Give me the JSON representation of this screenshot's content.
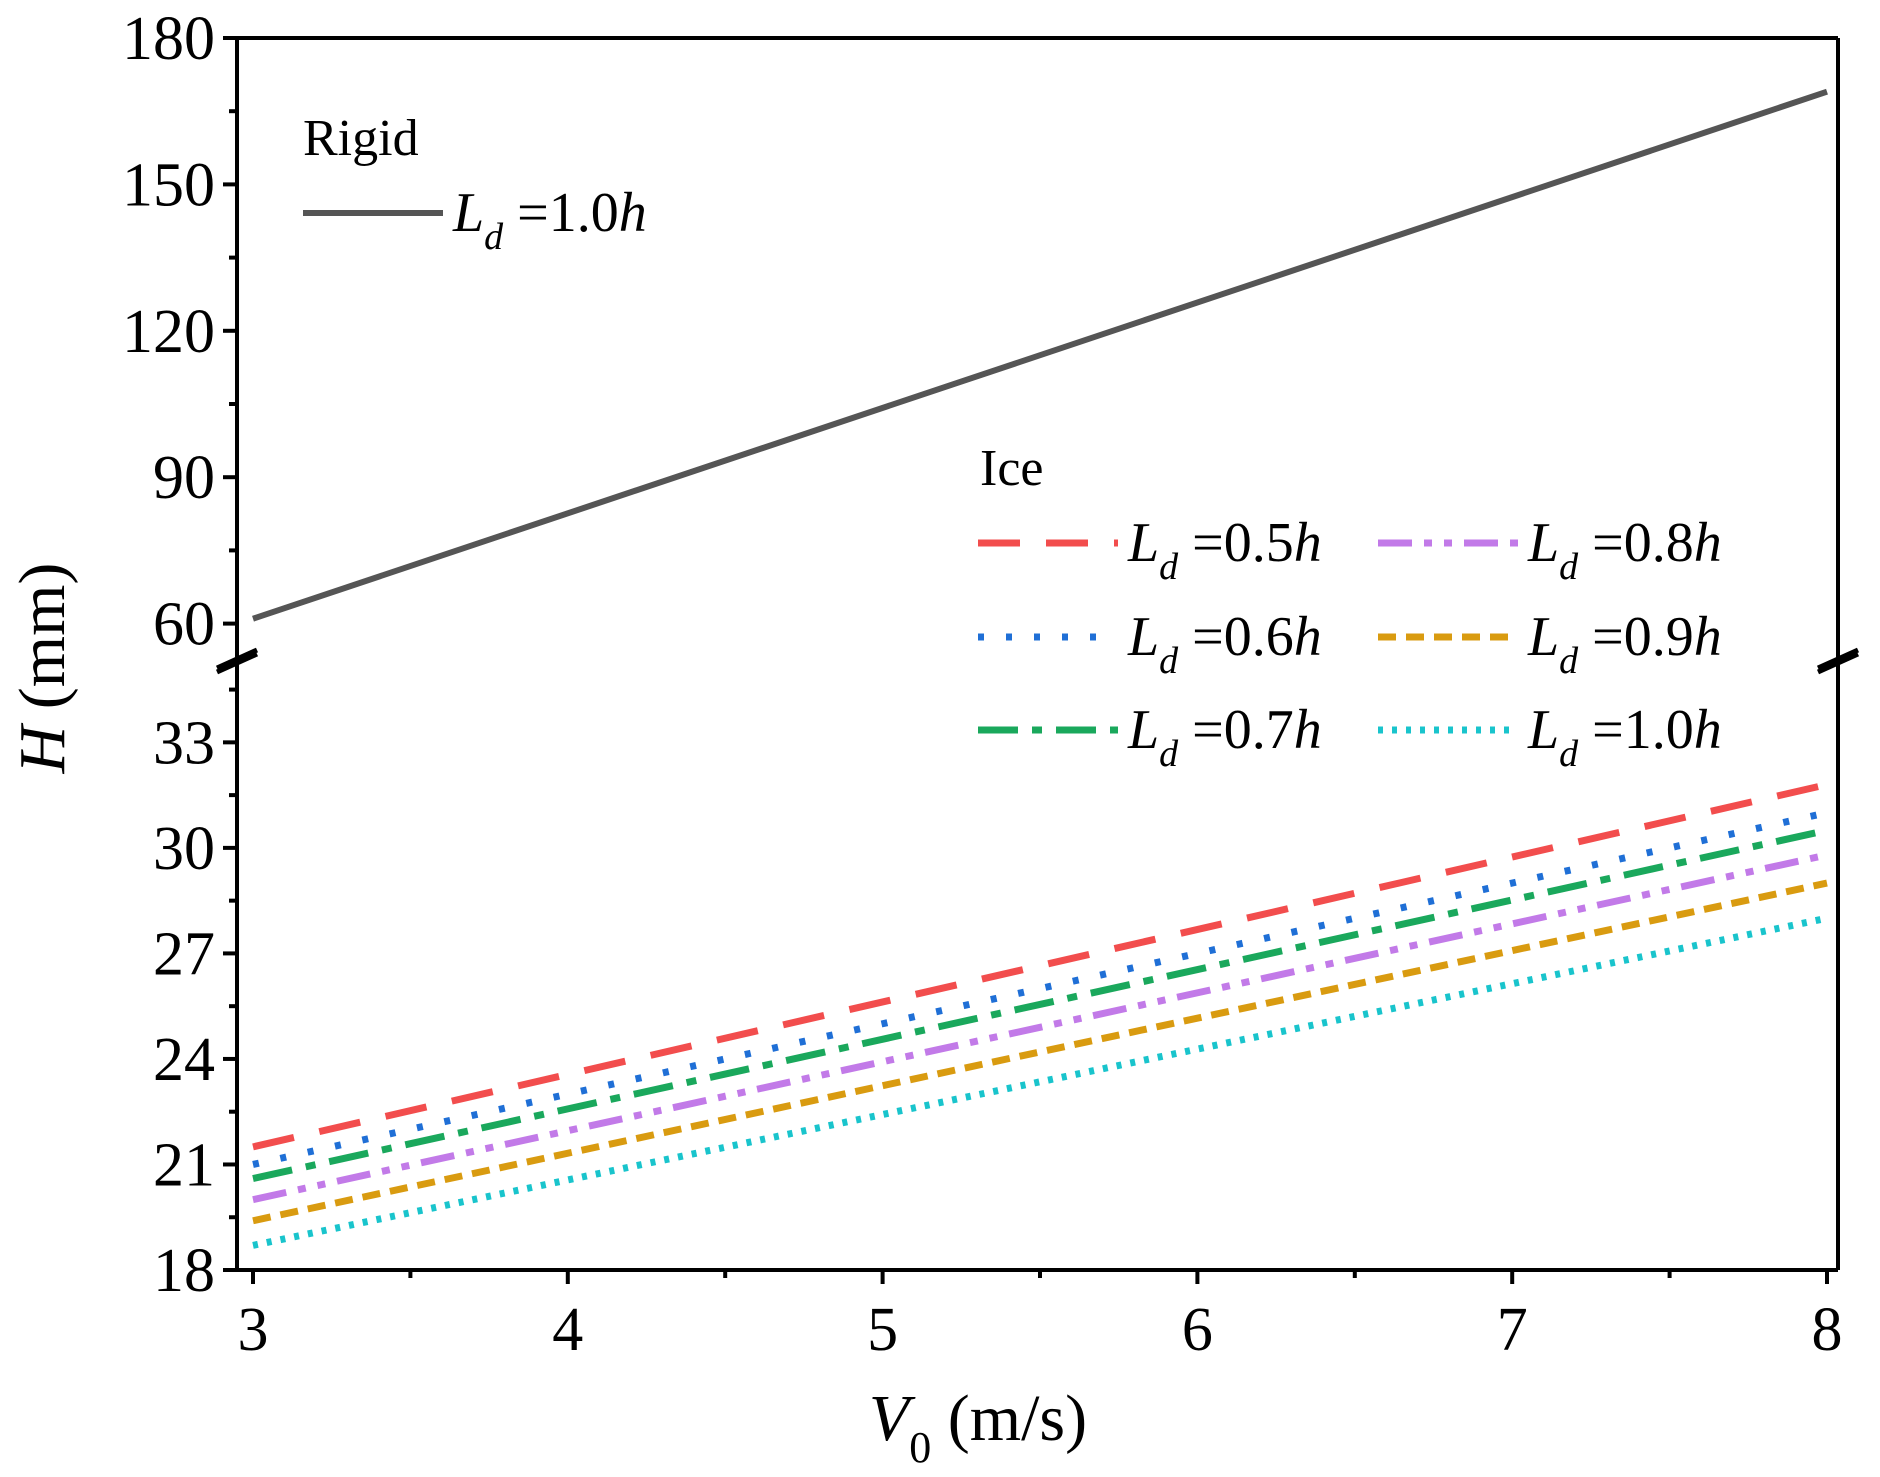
{
  "chart_data": {
    "type": "line",
    "x_axis": {
      "label_var": "V",
      "label_sub": "0",
      "label_unit": " (m/s)",
      "range": [
        3,
        8
      ],
      "ticks": [
        "3",
        "4",
        "5",
        "6",
        "7",
        "8"
      ]
    },
    "y_axis": {
      "label_var": "H",
      "label_unit": " (mm)",
      "broken": true,
      "lower_range": [
        18,
        35
      ],
      "upper_range": [
        55,
        180
      ],
      "lower_ticks": [
        "18",
        "21",
        "24",
        "27",
        "30",
        "33"
      ],
      "upper_ticks": [
        "60",
        "90",
        "120",
        "150",
        "180"
      ]
    },
    "groups": [
      {
        "title": "Rigid",
        "series_ids": [
          "rigid"
        ]
      },
      {
        "title": "Ice",
        "series_ids": [
          "ice05",
          "ice06",
          "ice07",
          "ice08",
          "ice09",
          "ice10"
        ]
      }
    ],
    "series": [
      {
        "id": "rigid",
        "group": "Rigid",
        "legend_sym": "L",
        "legend_sub": "d",
        "legend_val": "=1.0",
        "legend_h": "h",
        "color": "#555555",
        "style": "solid",
        "x": [
          3,
          8
        ],
        "y": [
          61,
          169
        ]
      },
      {
        "id": "ice05",
        "group": "Ice",
        "legend_sym": "L",
        "legend_sub": "d",
        "legend_val": "=0.5",
        "legend_h": "h",
        "color": "#f24d4d",
        "style": "dash",
        "x": [
          3,
          8
        ],
        "y": [
          21.5,
          31.8
        ]
      },
      {
        "id": "ice06",
        "group": "Ice",
        "legend_sym": "L",
        "legend_sub": "d",
        "legend_val": "=0.6",
        "legend_h": "h",
        "color": "#1f6fd6",
        "style": "dot",
        "x": [
          3,
          8
        ],
        "y": [
          21.0,
          31.0
        ]
      },
      {
        "id": "ice07",
        "group": "Ice",
        "legend_sym": "L",
        "legend_sub": "d",
        "legend_val": "=0.7",
        "legend_h": "h",
        "color": "#1aa85c",
        "style": "dashdot",
        "x": [
          3,
          8
        ],
        "y": [
          20.6,
          30.5
        ]
      },
      {
        "id": "ice08",
        "group": "Ice",
        "legend_sym": "L",
        "legend_sub": "d",
        "legend_val": "=0.8",
        "legend_h": "h",
        "color": "#c27ae8",
        "style": "dashdotdot",
        "x": [
          3,
          8
        ],
        "y": [
          20.0,
          29.8
        ]
      },
      {
        "id": "ice09",
        "group": "Ice",
        "legend_sym": "L",
        "legend_sub": "d",
        "legend_val": "=0.9",
        "legend_h": "h",
        "color": "#d99b10",
        "style": "shortdash",
        "x": [
          3,
          8
        ],
        "y": [
          19.4,
          29.0
        ]
      },
      {
        "id": "ice10",
        "group": "Ice",
        "legend_sym": "L",
        "legend_sub": "d",
        "legend_val": "=1.0",
        "legend_h": "h",
        "color": "#19c4cc",
        "style": "shortdot",
        "x": [
          3,
          8
        ],
        "y": [
          18.7,
          28.0
        ]
      }
    ]
  }
}
